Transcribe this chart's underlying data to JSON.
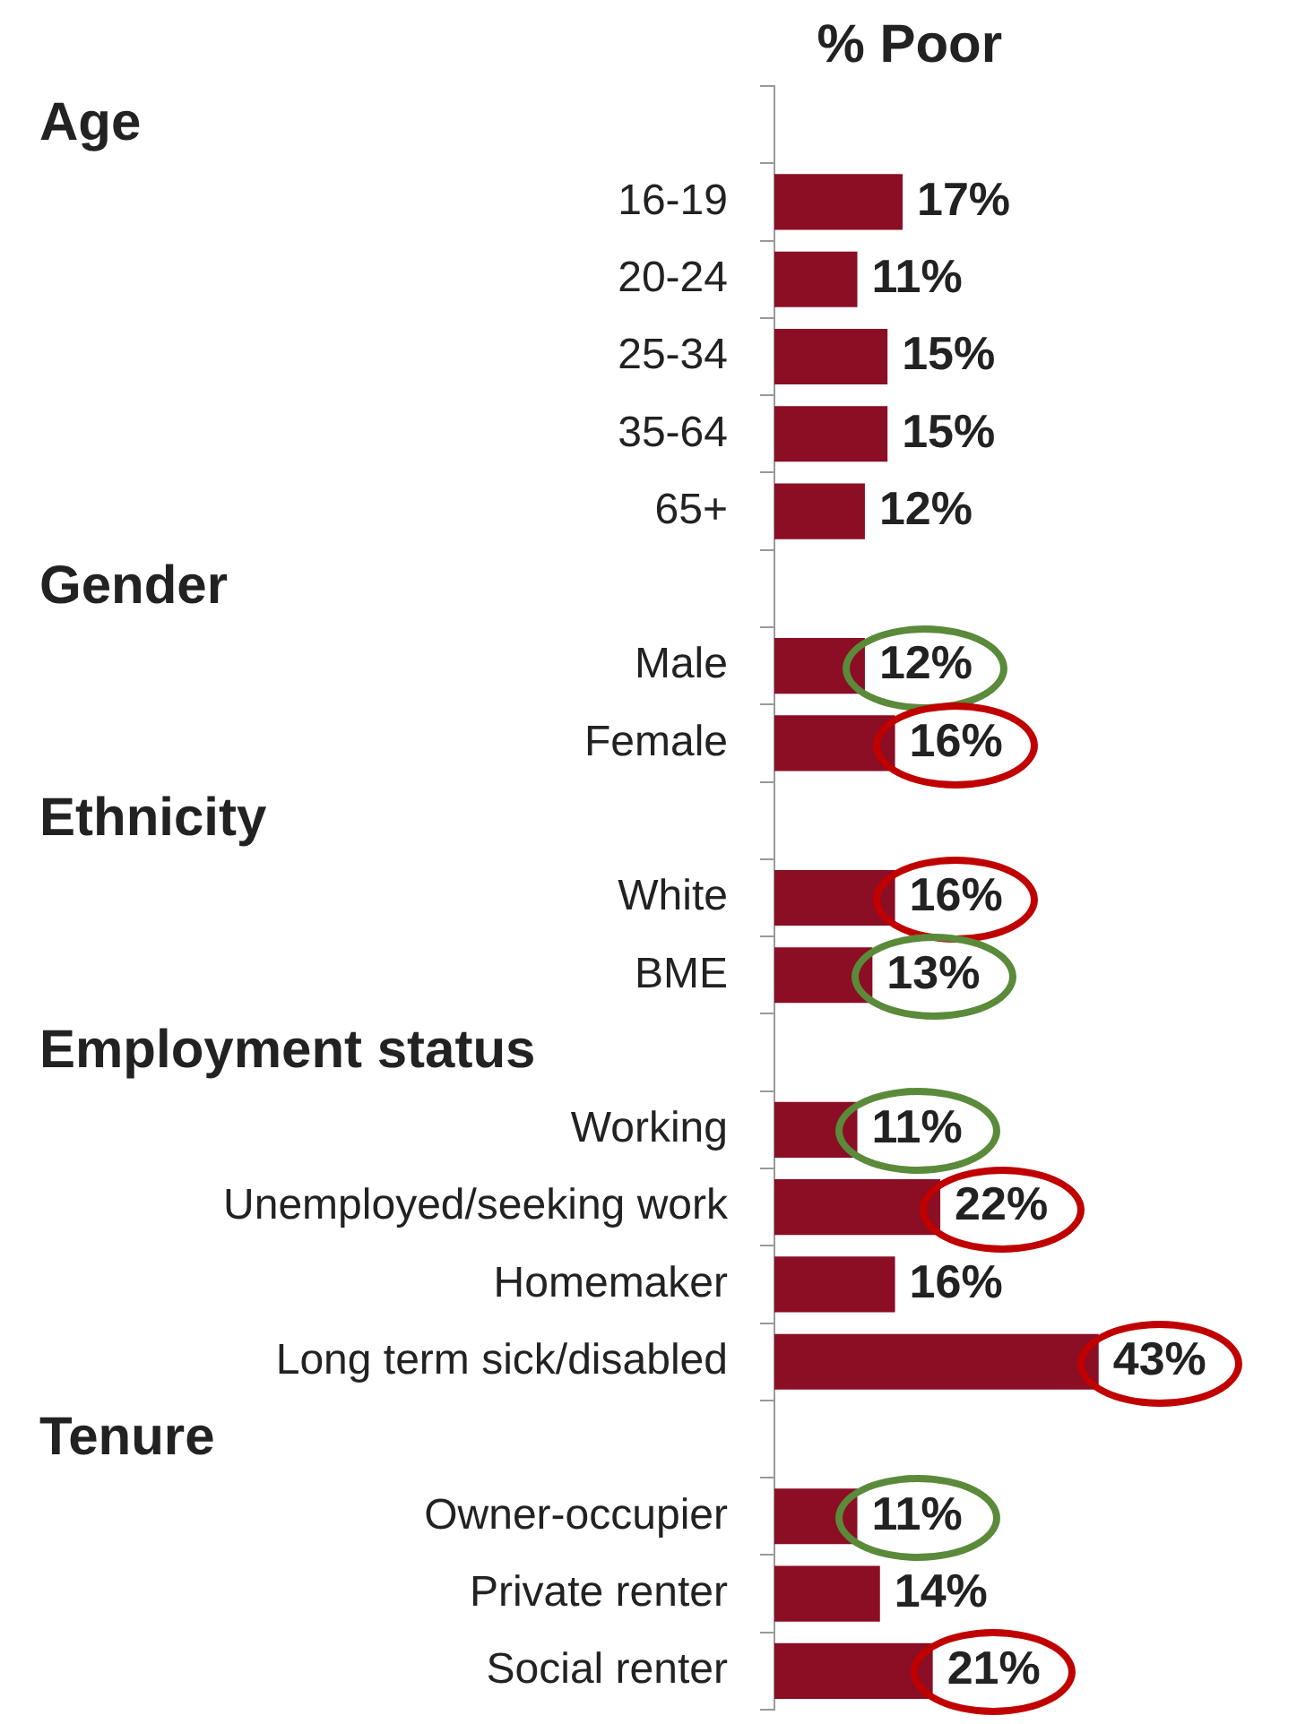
{
  "chart_data": {
    "type": "bar",
    "orientation": "horizontal",
    "title": "% Poor",
    "categories": [
      null,
      "16-19",
      "20-24",
      "25-34",
      "35-64",
      "65+",
      null,
      "Male",
      "Female",
      null,
      "White",
      "BME",
      null,
      "Working",
      "Unemployed/seeking work",
      "Homemaker",
      "Long term sick/disabled",
      null,
      "Owner-occupier",
      "Private renter",
      "Social renter"
    ],
    "values": [
      null,
      17,
      11,
      15,
      15,
      12,
      null,
      12,
      16,
      null,
      16,
      13,
      null,
      11,
      22,
      16,
      43,
      null,
      11,
      14,
      21
    ],
    "value_labels": [
      null,
      "17%",
      "11%",
      "15%",
      "15%",
      "12%",
      null,
      "12%",
      "16%",
      null,
      "16%",
      "13%",
      null,
      "11%",
      "22%",
      "16%",
      "43%",
      null,
      "11%",
      "14%",
      "21%"
    ],
    "annotations": [
      "Age",
      "Gender",
      "Ethnicity",
      "Employment status",
      "Tenure"
    ],
    "color": "#8b0e24",
    "grid": false,
    "legend": false
  }
}
